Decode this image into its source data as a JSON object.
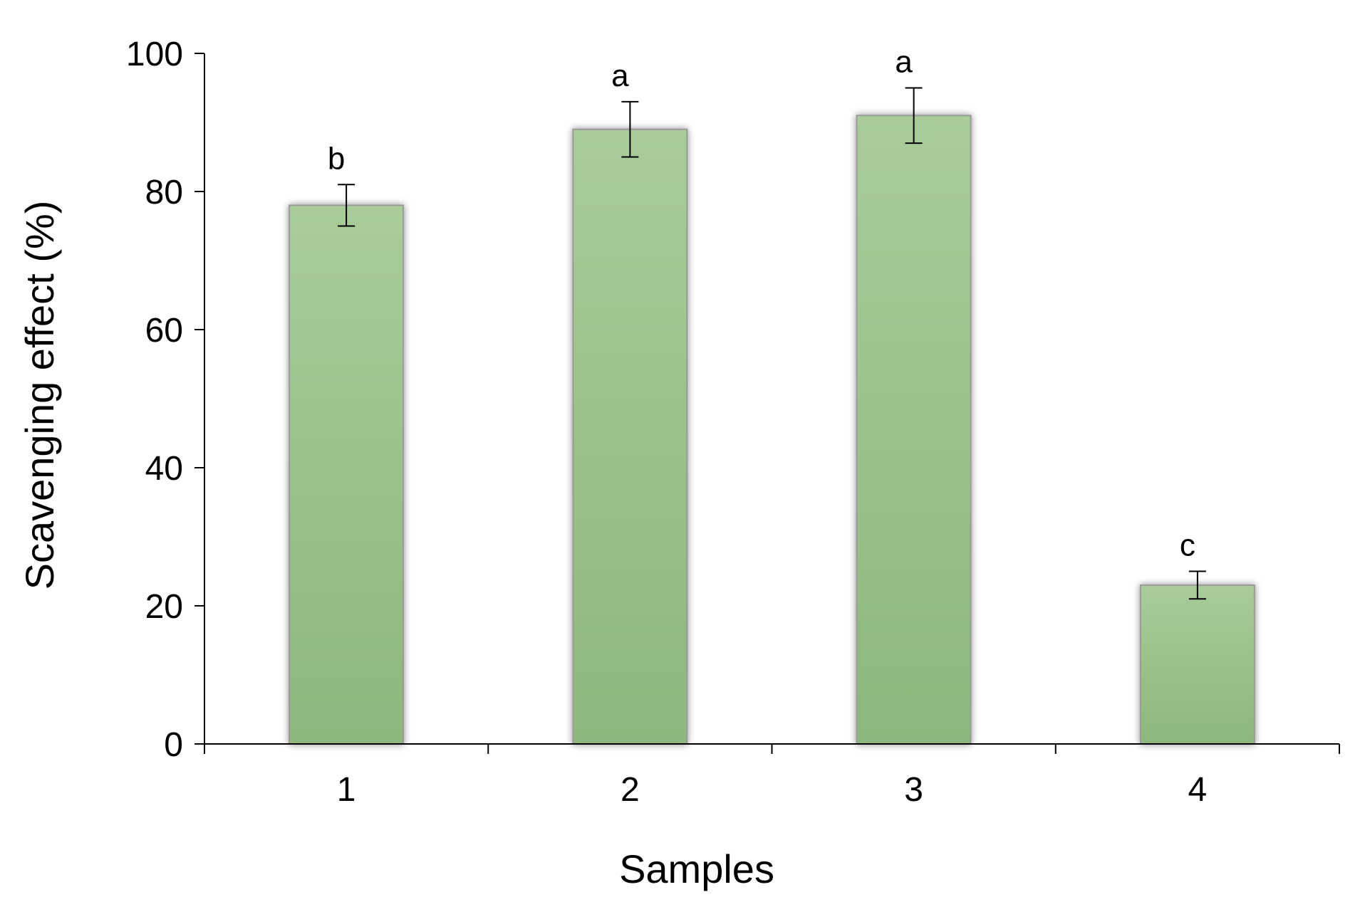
{
  "chart_data": {
    "type": "bar",
    "title": "",
    "xlabel": "Samples",
    "ylabel": "Scavenging effect (%)",
    "categories": [
      "1",
      "2",
      "3",
      "4"
    ],
    "values": [
      78,
      89,
      91,
      23
    ],
    "error": [
      3,
      4,
      4,
      2
    ],
    "significance_labels": [
      "b",
      "a",
      "a",
      "c"
    ],
    "ylim": [
      0,
      100
    ],
    "yticks": [
      0,
      20,
      40,
      60,
      80,
      100
    ],
    "grid": false,
    "legend": "none",
    "colors": {
      "bar_top": "#a9cc99",
      "bar_bottom": "#8db77c",
      "bar_edge": "#9a9a9a",
      "axis": "#000000"
    }
  }
}
